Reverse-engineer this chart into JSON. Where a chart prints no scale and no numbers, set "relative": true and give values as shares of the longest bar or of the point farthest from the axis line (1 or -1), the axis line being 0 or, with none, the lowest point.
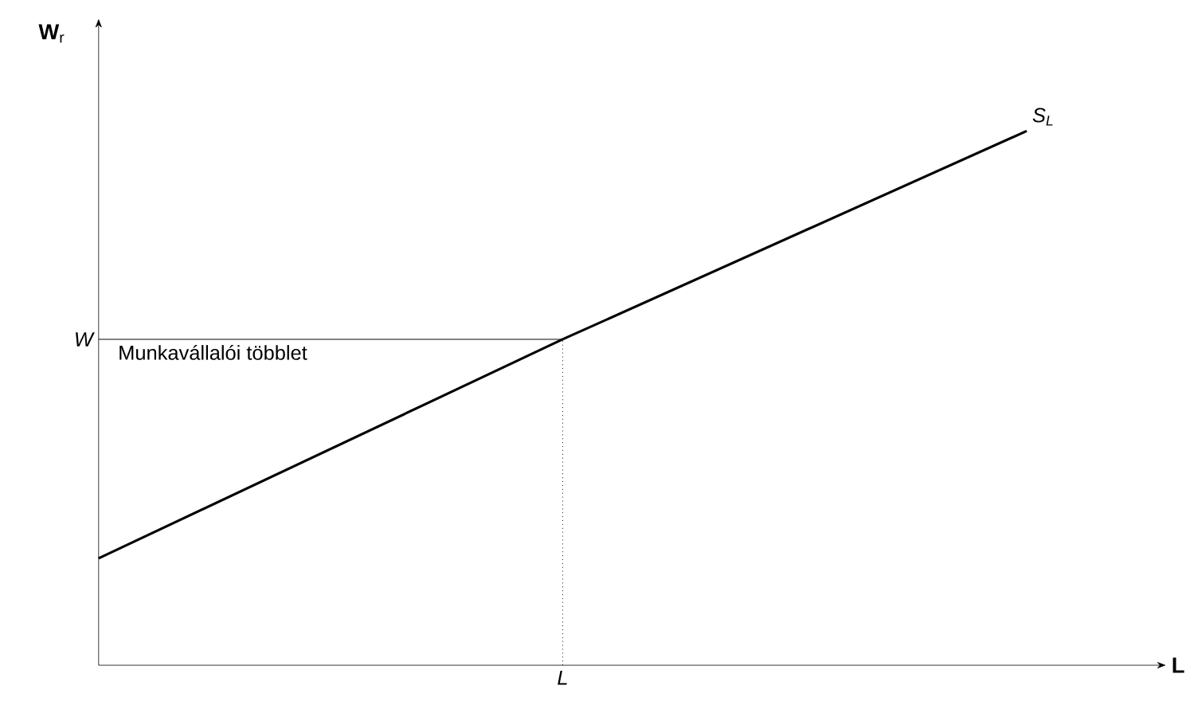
{
  "chart_data": {
    "type": "line",
    "relative": true,
    "ylabel": "**W**$_{r}$",
    "xlabel": "**L**",
    "categories": [
      null,
      null,
      null
    ],
    "series": [
      {
        "name": "S$_{L}$",
        "color": "#000000",
        "values": [
          0.2,
          0.61,
          1
        ]
      }
    ],
    "ref_lines": [
      {
        "axis": "y",
        "value": 0.61,
        "label": "W",
        "color": "#000000",
        "line_style": "solid"
      }
    ],
    "annotations": [
      "Munkavállalói többlet",
      "L"
    ],
    "legend": false,
    "grid": false,
    "marker": "none",
    "line_style": "solid"
  }
}
